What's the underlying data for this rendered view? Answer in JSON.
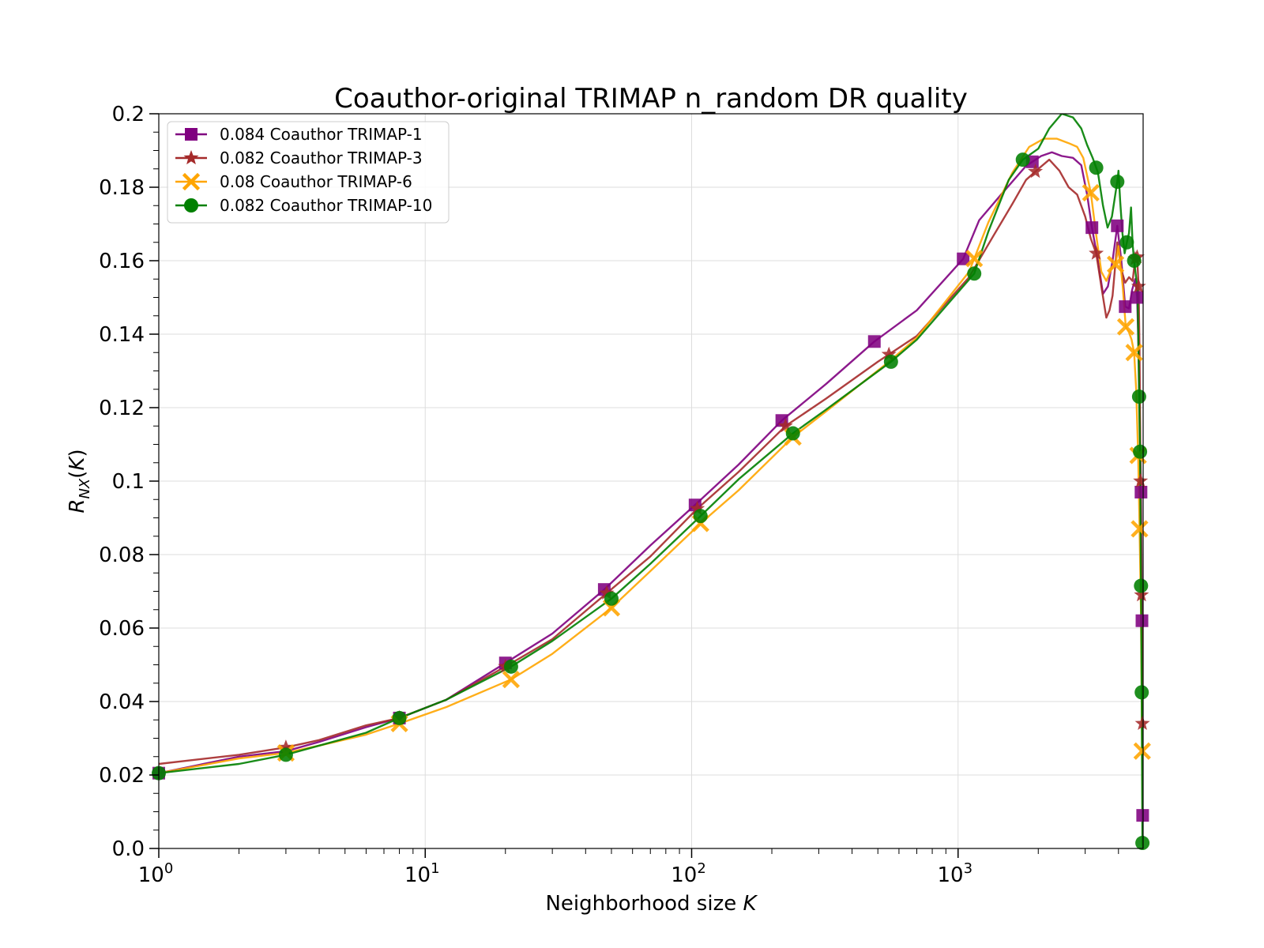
{
  "chart_data": {
    "type": "line",
    "title": "Coauthor-original TRIMAP n_random DR quality",
    "xlabel": "Neighborhood size K",
    "ylabel": "R_NX(K)",
    "xscale": "log",
    "xlim": [
      1,
      4950
    ],
    "ylim": [
      0,
      0.2
    ],
    "grid": true,
    "legend_position": "upper-left",
    "yticks": [
      "0.0",
      "0.02",
      "0.04",
      "0.06",
      "0.08",
      "0.1",
      "0.12",
      "0.14",
      "0.16",
      "0.18",
      "0.2"
    ],
    "xticks": [
      {
        "base": "10",
        "exp": "0",
        "value": 1
      },
      {
        "base": "10",
        "exp": "1",
        "value": 10
      },
      {
        "base": "10",
        "exp": "2",
        "value": 100
      },
      {
        "base": "10",
        "exp": "3",
        "value": 1000
      }
    ],
    "series": [
      {
        "name": "0.084 Coauthor TRIMAP-1",
        "color": "#800080",
        "marker": "square",
        "points": [
          [
            1,
            0.0205
          ],
          [
            2,
            0.025
          ],
          [
            3,
            0.0265
          ],
          [
            4,
            0.029
          ],
          [
            6,
            0.033
          ],
          [
            8,
            0.0355
          ],
          [
            12,
            0.0405
          ],
          [
            20,
            0.0505
          ],
          [
            30,
            0.0585
          ],
          [
            47,
            0.0705
          ],
          [
            70,
            0.0825
          ],
          [
            103,
            0.0935
          ],
          [
            150,
            0.1045
          ],
          [
            218,
            0.1165
          ],
          [
            320,
            0.1265
          ],
          [
            485,
            0.138
          ],
          [
            700,
            0.1465
          ],
          [
            1045,
            0.1605
          ],
          [
            1200,
            0.171
          ],
          [
            1450,
            0.178
          ],
          [
            1800,
            0.1858
          ],
          [
            2050,
            0.1885
          ],
          [
            2250,
            0.1895
          ],
          [
            2450,
            0.1885
          ],
          [
            2700,
            0.188
          ],
          [
            2900,
            0.186
          ],
          [
            3050,
            0.178
          ],
          [
            3180,
            0.169
          ],
          [
            3350,
            0.16
          ],
          [
            3500,
            0.151
          ],
          [
            3650,
            0.153
          ],
          [
            3800,
            0.16
          ],
          [
            3960,
            0.1695
          ],
          [
            4100,
            0.16
          ],
          [
            4240,
            0.1475
          ],
          [
            4380,
            0.147
          ],
          [
            4500,
            0.152
          ],
          [
            4620,
            0.155
          ],
          [
            4700,
            0.15
          ],
          [
            4780,
            0.13
          ],
          [
            4860,
            0.097
          ],
          [
            4900,
            0.062
          ],
          [
            4930,
            0.009
          ],
          [
            4950,
            0.0
          ]
        ],
        "markers_at": [
          1,
          8,
          20,
          47,
          103,
          218,
          485,
          1045,
          1900,
          3180,
          3960,
          4240,
          4700,
          4860,
          4900,
          4930
        ]
      },
      {
        "name": "0.082 Coauthor TRIMAP-3",
        "color": "#a52a2a",
        "marker": "star",
        "points": [
          [
            1,
            0.023
          ],
          [
            2,
            0.0255
          ],
          [
            3,
            0.0275
          ],
          [
            4,
            0.0295
          ],
          [
            6,
            0.0335
          ],
          [
            8,
            0.0355
          ],
          [
            12,
            0.0405
          ],
          [
            20,
            0.0495
          ],
          [
            30,
            0.057
          ],
          [
            48,
            0.0695
          ],
          [
            70,
            0.0795
          ],
          [
            105,
            0.0925
          ],
          [
            150,
            0.1025
          ],
          [
            225,
            0.115
          ],
          [
            320,
            0.1225
          ],
          [
            500,
            0.1325
          ],
          [
            700,
            0.1395
          ],
          [
            1100,
            0.1555
          ],
          [
            1350,
            0.1665
          ],
          [
            1600,
            0.1755
          ],
          [
            1800,
            0.182
          ],
          [
            2000,
            0.185
          ],
          [
            2200,
            0.1875
          ],
          [
            2400,
            0.1845
          ],
          [
            2600,
            0.18
          ],
          [
            2800,
            0.178
          ],
          [
            3000,
            0.172
          ],
          [
            3150,
            0.166
          ],
          [
            3300,
            0.162
          ],
          [
            3450,
            0.153
          ],
          [
            3600,
            0.1445
          ],
          [
            3700,
            0.1465
          ],
          [
            3800,
            0.1505
          ],
          [
            3960,
            0.165
          ],
          [
            4100,
            0.1575
          ],
          [
            4240,
            0.154
          ],
          [
            4380,
            0.1555
          ],
          [
            4520,
            0.1545
          ],
          [
            4620,
            0.1605
          ],
          [
            4700,
            0.161
          ],
          [
            4760,
            0.153
          ],
          [
            4800,
            0.135
          ],
          [
            4840,
            0.1
          ],
          [
            4880,
            0.069
          ],
          [
            4920,
            0.034
          ],
          [
            4950,
            0.0
          ]
        ],
        "markers_at": [
          3,
          8,
          20,
          48,
          105,
          225,
          550,
          1950,
          3300,
          4620,
          4700,
          4760,
          4840,
          4880,
          4920
        ]
      },
      {
        "name": "0.08 Coauthor TRIMAP-6",
        "color": "#ffa500",
        "marker": "x",
        "points": [
          [
            1,
            0.0205
          ],
          [
            2,
            0.0245
          ],
          [
            3,
            0.026
          ],
          [
            4,
            0.028
          ],
          [
            6,
            0.031
          ],
          [
            8,
            0.034
          ],
          [
            12,
            0.0385
          ],
          [
            21,
            0.046
          ],
          [
            30,
            0.053
          ],
          [
            50,
            0.0655
          ],
          [
            70,
            0.0755
          ],
          [
            108,
            0.0885
          ],
          [
            150,
            0.0975
          ],
          [
            240,
            0.112
          ],
          [
            320,
            0.119
          ],
          [
            550,
            0.1325
          ],
          [
            700,
            0.139
          ],
          [
            1100,
            0.157
          ],
          [
            1300,
            0.1705
          ],
          [
            1600,
            0.184
          ],
          [
            1850,
            0.191
          ],
          [
            2100,
            0.1932
          ],
          [
            2350,
            0.1932
          ],
          [
            2600,
            0.192
          ],
          [
            2800,
            0.191
          ],
          [
            2950,
            0.188
          ],
          [
            3150,
            0.1785
          ],
          [
            3300,
            0.167
          ],
          [
            3450,
            0.157
          ],
          [
            3600,
            0.1545
          ],
          [
            3750,
            0.1575
          ],
          [
            3900,
            0.159
          ],
          [
            4000,
            0.164
          ],
          [
            4150,
            0.153
          ],
          [
            4260,
            0.142
          ],
          [
            4380,
            0.1405
          ],
          [
            4480,
            0.1385
          ],
          [
            4580,
            0.135
          ],
          [
            4660,
            0.125
          ],
          [
            4740,
            0.107
          ],
          [
            4800,
            0.087
          ],
          [
            4860,
            0.064
          ],
          [
            4910,
            0.0265
          ],
          [
            4950,
            0.0
          ]
        ],
        "markers_at": [
          3,
          8,
          21,
          50,
          108,
          240,
          1150,
          3150,
          3900,
          4260,
          4580,
          4740,
          4800,
          4910
        ]
      },
      {
        "name": "0.082 Coauthor TRIMAP-10",
        "color": "#008000",
        "marker": "circle",
        "points": [
          [
            1,
            0.0205
          ],
          [
            2,
            0.023
          ],
          [
            3,
            0.0255
          ],
          [
            4,
            0.028
          ],
          [
            6,
            0.0315
          ],
          [
            8,
            0.0355
          ],
          [
            12,
            0.0405
          ],
          [
            21,
            0.0495
          ],
          [
            30,
            0.0565
          ],
          [
            50,
            0.068
          ],
          [
            70,
            0.0775
          ],
          [
            108,
            0.0905
          ],
          [
            150,
            0.1005
          ],
          [
            240,
            0.113
          ],
          [
            320,
            0.1195
          ],
          [
            560,
            0.1325
          ],
          [
            700,
            0.1385
          ],
          [
            1150,
            0.1565
          ],
          [
            1300,
            0.168
          ],
          [
            1550,
            0.182
          ],
          [
            1750,
            0.1875
          ],
          [
            2000,
            0.1905
          ],
          [
            2200,
            0.196
          ],
          [
            2450,
            0.2
          ],
          [
            2700,
            0.199
          ],
          [
            2900,
            0.196
          ],
          [
            3050,
            0.1915
          ],
          [
            3200,
            0.188
          ],
          [
            3350,
            0.184
          ],
          [
            3500,
            0.175
          ],
          [
            3640,
            0.169
          ],
          [
            3780,
            0.172
          ],
          [
            3900,
            0.1785
          ],
          [
            3960,
            0.1815
          ],
          [
            4000,
            0.1845
          ],
          [
            4060,
            0.176
          ],
          [
            4140,
            0.1675
          ],
          [
            4220,
            0.162
          ],
          [
            4300,
            0.165
          ],
          [
            4380,
            0.1675
          ],
          [
            4460,
            0.1745
          ],
          [
            4520,
            0.1645
          ],
          [
            4580,
            0.16
          ],
          [
            4650,
            0.156
          ],
          [
            4720,
            0.152
          ],
          [
            4780,
            0.123
          ],
          [
            4820,
            0.108
          ],
          [
            4860,
            0.0715
          ],
          [
            4890,
            0.0425
          ],
          [
            4920,
            0.0015
          ],
          [
            4950,
            0.0
          ]
        ],
        "markers_at": [
          1,
          3,
          8,
          21,
          50,
          108,
          240,
          560,
          1150,
          1750,
          3300,
          3960,
          4300,
          4580,
          4780,
          4820,
          4860,
          4890,
          4920
        ]
      }
    ]
  }
}
